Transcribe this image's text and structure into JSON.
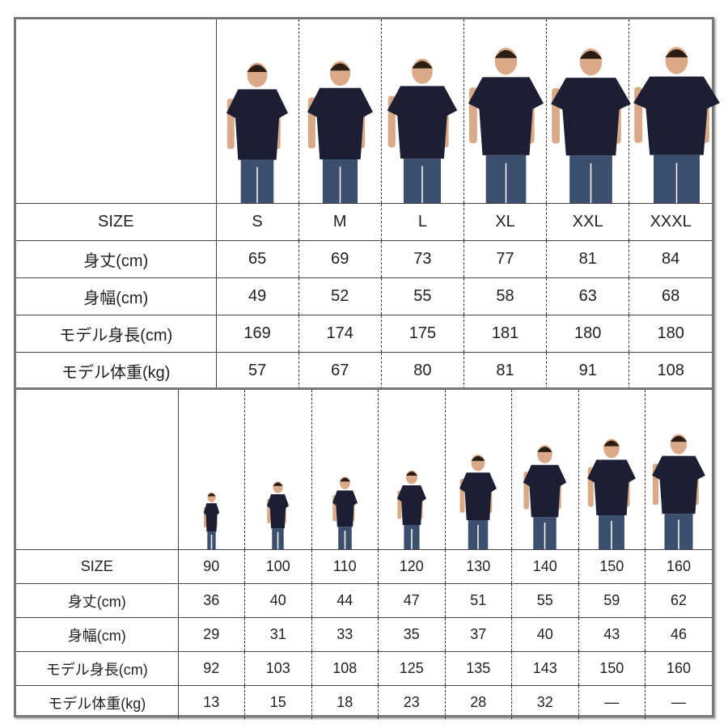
{
  "adult": {
    "row_labels": [
      "SIZE",
      "身丈(cm)",
      "身幅(cm)",
      "モデル身長(cm)",
      "モデル体重(kg)"
    ],
    "sizes": [
      "S",
      "M",
      "L",
      "XL",
      "XXL",
      "XXXL"
    ],
    "length": [
      "65",
      "69",
      "73",
      "77",
      "81",
      "84"
    ],
    "width": [
      "49",
      "52",
      "55",
      "58",
      "63",
      "68"
    ],
    "model_height": [
      "169",
      "174",
      "175",
      "181",
      "180",
      "180"
    ],
    "model_weight": [
      "57",
      "67",
      "80",
      "81",
      "91",
      "108"
    ]
  },
  "kids": {
    "row_labels": [
      "SIZE",
      "身丈(cm)",
      "身幅(cm)",
      "モデル身長(cm)",
      "モデル体重(kg)"
    ],
    "sizes": [
      "90",
      "100",
      "110",
      "120",
      "130",
      "140",
      "150",
      "160"
    ],
    "length": [
      "36",
      "40",
      "44",
      "47",
      "51",
      "55",
      "59",
      "62"
    ],
    "width": [
      "29",
      "31",
      "33",
      "35",
      "37",
      "40",
      "43",
      "46"
    ],
    "model_height": [
      "92",
      "103",
      "108",
      "125",
      "135",
      "143",
      "150",
      "160"
    ],
    "model_weight": [
      "13",
      "15",
      "18",
      "23",
      "28",
      "32",
      "—",
      "—"
    ]
  },
  "colors": {
    "shirt": "#1c1f33",
    "jeans": "#3d4f6e",
    "skin": "#d9a988",
    "hair": "#2a1d14",
    "border": "#777777"
  }
}
